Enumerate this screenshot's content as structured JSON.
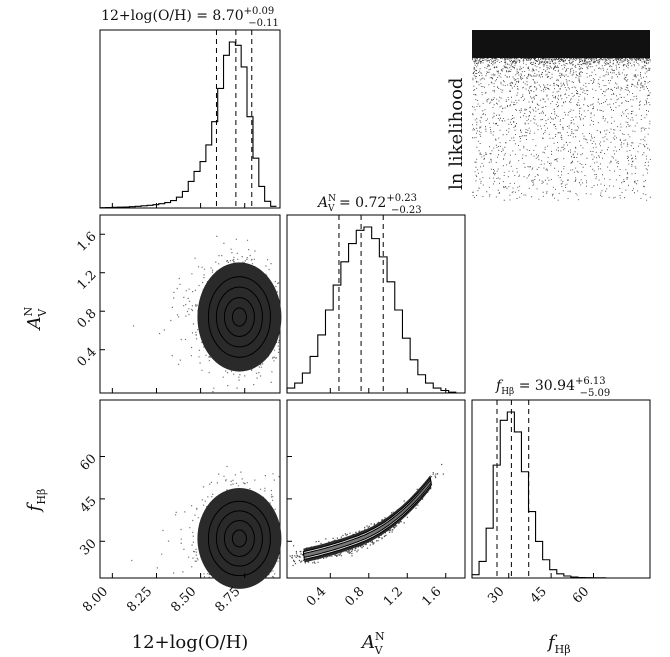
{
  "figure": {
    "lnlike_label": "ln likelihood"
  },
  "chart_data": {
    "type": "corner",
    "parameters": [
      {
        "key": "oh",
        "axis_label": "12+log(O/H)",
        "title_main": "12+log(O/H) = 8.70",
        "title_sup": "+0.09",
        "title_sub": "−0.11",
        "median": 8.7,
        "q16": 8.59,
        "q84": 8.79,
        "range": [
          7.93,
          8.95
        ],
        "ticks": [
          8.0,
          8.25,
          8.5,
          8.75
        ],
        "tick_labels": [
          "8.00",
          "8.25",
          "8.50",
          "8.75"
        ],
        "hist_bins": [
          7.93,
          7.963,
          7.997,
          8.03,
          8.063,
          8.097,
          8.13,
          8.163,
          8.197,
          8.23,
          8.263,
          8.297,
          8.33,
          8.363,
          8.397,
          8.43,
          8.463,
          8.497,
          8.53,
          8.563,
          8.597,
          8.63,
          8.663,
          8.697,
          8.73,
          8.763,
          8.797,
          8.83,
          8.863,
          8.897,
          8.93
        ],
        "hist_counts": [
          0.002,
          0.003,
          0.004,
          0.005,
          0.006,
          0.008,
          0.01,
          0.013,
          0.016,
          0.02,
          0.026,
          0.033,
          0.045,
          0.065,
          0.1,
          0.16,
          0.22,
          0.28,
          0.38,
          0.52,
          0.72,
          0.92,
          1.0,
          0.98,
          0.85,
          0.55,
          0.3,
          0.13,
          0.04,
          0.01
        ]
      },
      {
        "key": "av",
        "axis_label": "A",
        "axis_sup": "N",
        "axis_sub": "V",
        "title_main": "0.72",
        "title_sup": "+0.23",
        "title_sub": "−0.23",
        "median": 0.72,
        "q16": 0.49,
        "q84": 0.95,
        "range": [
          -0.05,
          1.8
        ],
        "ticks": [
          0.4,
          0.8,
          1.2,
          1.6
        ],
        "tick_labels": [
          "0.4",
          "0.8",
          "1.2",
          "1.6"
        ],
        "hist_bins": [
          -0.05,
          0.03,
          0.11,
          0.19,
          0.27,
          0.35,
          0.43,
          0.51,
          0.59,
          0.67,
          0.75,
          0.83,
          0.91,
          0.99,
          1.07,
          1.15,
          1.23,
          1.31,
          1.39,
          1.47,
          1.55,
          1.63,
          1.71
        ],
        "hist_counts": [
          0.03,
          0.06,
          0.12,
          0.22,
          0.35,
          0.5,
          0.65,
          0.79,
          0.9,
          0.98,
          1.0,
          0.93,
          0.82,
          0.67,
          0.5,
          0.33,
          0.2,
          0.11,
          0.06,
          0.03,
          0.015,
          0.005
        ]
      },
      {
        "key": "fhb",
        "axis_label": "f",
        "axis_sub": "Hβ",
        "title_main": "30.94",
        "title_sup": "+6.13",
        "title_sub": "−5.09",
        "median": 30.94,
        "q16": 25.85,
        "q84": 37.07,
        "range": [
          17,
          80
        ],
        "ticks": [
          30,
          45,
          60
        ],
        "tick_labels": [
          "30",
          "45",
          "60"
        ],
        "hist_bins": [
          17,
          19.5,
          22,
          24.5,
          27,
          29.5,
          32,
          34.5,
          37,
          39.5,
          42,
          44.5,
          47,
          49.5,
          52,
          54.5,
          57,
          59.5,
          62,
          64.5
        ],
        "hist_counts": [
          0.02,
          0.1,
          0.3,
          0.68,
          0.95,
          1.0,
          0.88,
          0.64,
          0.4,
          0.22,
          0.11,
          0.05,
          0.025,
          0.012,
          0.006,
          0.003,
          0.002,
          0.001,
          0.001
        ]
      }
    ],
    "pairs": [
      {
        "x": "oh",
        "y": "av",
        "center": [
          8.72,
          0.74
        ]
      },
      {
        "x": "oh",
        "y": "fhb",
        "center": [
          8.72,
          31
        ]
      },
      {
        "x": "av",
        "y": "fhb",
        "center": [
          0.72,
          31
        ]
      }
    ]
  }
}
